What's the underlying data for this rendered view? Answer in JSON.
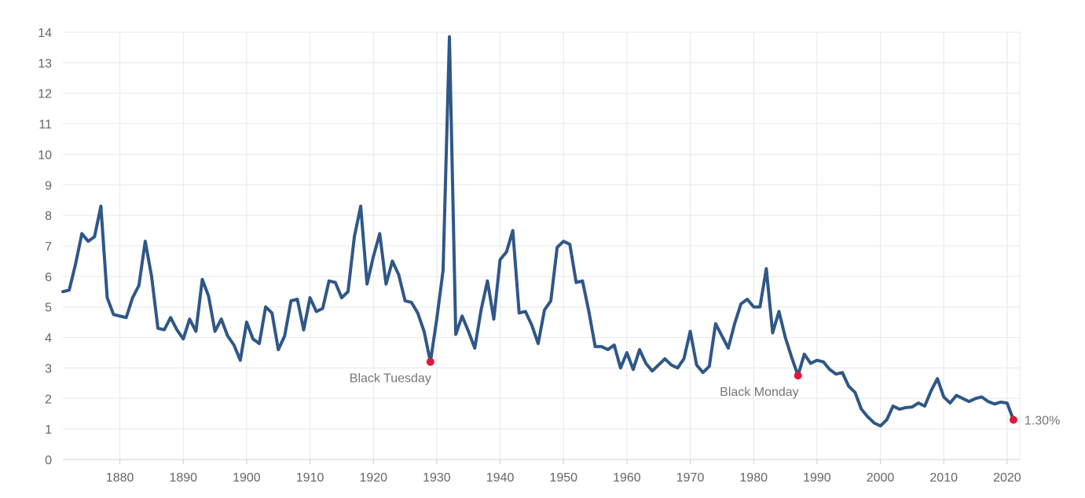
{
  "chart_data": {
    "type": "line",
    "title": "",
    "xlabel": "",
    "ylabel": "",
    "xlim": [
      1871,
      2022
    ],
    "ylim": [
      0,
      14
    ],
    "grid": true,
    "legend": "none",
    "x_ticks": [
      1880,
      1890,
      1900,
      1910,
      1920,
      1930,
      1940,
      1950,
      1960,
      1970,
      1980,
      1990,
      2000,
      2010,
      2020
    ],
    "y_ticks": [
      0,
      1,
      2,
      3,
      4,
      5,
      6,
      7,
      8,
      9,
      10,
      11,
      12,
      13,
      14
    ],
    "series": [
      {
        "color": "#2f5788",
        "points": [
          [
            1871,
            5.5
          ],
          [
            1872,
            5.55
          ],
          [
            1873,
            6.4
          ],
          [
            1874,
            7.4
          ],
          [
            1875,
            7.15
          ],
          [
            1876,
            7.3
          ],
          [
            1877,
            8.3
          ],
          [
            1878,
            5.3
          ],
          [
            1879,
            4.75
          ],
          [
            1880,
            4.7
          ],
          [
            1881,
            4.65
          ],
          [
            1882,
            5.3
          ],
          [
            1883,
            5.7
          ],
          [
            1884,
            7.15
          ],
          [
            1885,
            6.0
          ],
          [
            1886,
            4.3
          ],
          [
            1887,
            4.25
          ],
          [
            1888,
            4.65
          ],
          [
            1889,
            4.25
          ],
          [
            1890,
            3.95
          ],
          [
            1891,
            4.6
          ],
          [
            1892,
            4.2
          ],
          [
            1893,
            5.9
          ],
          [
            1894,
            5.35
          ],
          [
            1895,
            4.2
          ],
          [
            1896,
            4.6
          ],
          [
            1897,
            4.05
          ],
          [
            1898,
            3.75
          ],
          [
            1899,
            3.25
          ],
          [
            1900,
            4.5
          ],
          [
            1901,
            3.95
          ],
          [
            1902,
            3.8
          ],
          [
            1903,
            5.0
          ],
          [
            1904,
            4.8
          ],
          [
            1905,
            3.6
          ],
          [
            1906,
            4.05
          ],
          [
            1907,
            5.2
          ],
          [
            1908,
            5.25
          ],
          [
            1909,
            4.25
          ],
          [
            1910,
            5.3
          ],
          [
            1911,
            4.85
          ],
          [
            1912,
            4.95
          ],
          [
            1913,
            5.85
          ],
          [
            1914,
            5.8
          ],
          [
            1915,
            5.3
          ],
          [
            1916,
            5.5
          ],
          [
            1917,
            7.3
          ],
          [
            1918,
            8.3
          ],
          [
            1919,
            5.75
          ],
          [
            1920,
            6.65
          ],
          [
            1921,
            7.4
          ],
          [
            1922,
            5.75
          ],
          [
            1923,
            6.5
          ],
          [
            1924,
            6.05
          ],
          [
            1925,
            5.2
          ],
          [
            1926,
            5.15
          ],
          [
            1927,
            4.8
          ],
          [
            1928,
            4.2
          ],
          [
            1929,
            3.2
          ],
          [
            1930,
            4.6
          ],
          [
            1931,
            6.2
          ],
          [
            1932,
            13.85
          ],
          [
            1933,
            4.1
          ],
          [
            1934,
            4.7
          ],
          [
            1935,
            4.2
          ],
          [
            1936,
            3.65
          ],
          [
            1937,
            4.9
          ],
          [
            1938,
            5.85
          ],
          [
            1939,
            4.6
          ],
          [
            1940,
            6.55
          ],
          [
            1941,
            6.8
          ],
          [
            1942,
            7.5
          ],
          [
            1943,
            4.8
          ],
          [
            1944,
            4.85
          ],
          [
            1945,
            4.4
          ],
          [
            1946,
            3.8
          ],
          [
            1947,
            4.9
          ],
          [
            1948,
            5.2
          ],
          [
            1949,
            6.95
          ],
          [
            1950,
            7.15
          ],
          [
            1951,
            7.05
          ],
          [
            1952,
            5.8
          ],
          [
            1953,
            5.85
          ],
          [
            1954,
            4.85
          ],
          [
            1955,
            3.7
          ],
          [
            1956,
            3.7
          ],
          [
            1957,
            3.6
          ],
          [
            1958,
            3.75
          ],
          [
            1959,
            3.0
          ],
          [
            1960,
            3.5
          ],
          [
            1961,
            2.95
          ],
          [
            1962,
            3.6
          ],
          [
            1963,
            3.15
          ],
          [
            1964,
            2.9
          ],
          [
            1965,
            3.1
          ],
          [
            1966,
            3.3
          ],
          [
            1967,
            3.1
          ],
          [
            1968,
            3.0
          ],
          [
            1969,
            3.3
          ],
          [
            1970,
            4.2
          ],
          [
            1971,
            3.1
          ],
          [
            1972,
            2.85
          ],
          [
            1973,
            3.05
          ],
          [
            1974,
            4.45
          ],
          [
            1975,
            4.05
          ],
          [
            1976,
            3.65
          ],
          [
            1977,
            4.45
          ],
          [
            1978,
            5.1
          ],
          [
            1979,
            5.25
          ],
          [
            1980,
            5.0
          ],
          [
            1981,
            5.0
          ],
          [
            1982,
            6.25
          ],
          [
            1983,
            4.15
          ],
          [
            1984,
            4.85
          ],
          [
            1985,
            4.0
          ],
          [
            1986,
            3.35
          ],
          [
            1987,
            2.75
          ],
          [
            1988,
            3.45
          ],
          [
            1989,
            3.15
          ],
          [
            1990,
            3.25
          ],
          [
            1991,
            3.2
          ],
          [
            1992,
            2.95
          ],
          [
            1993,
            2.8
          ],
          [
            1994,
            2.85
          ],
          [
            1995,
            2.4
          ],
          [
            1996,
            2.2
          ],
          [
            1997,
            1.65
          ],
          [
            1998,
            1.4
          ],
          [
            1999,
            1.2
          ],
          [
            2000,
            1.1
          ],
          [
            2001,
            1.3
          ],
          [
            2002,
            1.75
          ],
          [
            2003,
            1.65
          ],
          [
            2004,
            1.7
          ],
          [
            2005,
            1.72
          ],
          [
            2006,
            1.85
          ],
          [
            2007,
            1.75
          ],
          [
            2008,
            2.25
          ],
          [
            2009,
            2.65
          ],
          [
            2010,
            2.05
          ],
          [
            2011,
            1.85
          ],
          [
            2012,
            2.1
          ],
          [
            2013,
            2.0
          ],
          [
            2014,
            1.9
          ],
          [
            2015,
            2.0
          ],
          [
            2016,
            2.05
          ],
          [
            2017,
            1.9
          ],
          [
            2018,
            1.82
          ],
          [
            2019,
            1.88
          ],
          [
            2020,
            1.85
          ],
          [
            2021,
            1.3
          ]
        ]
      }
    ],
    "annotations": [
      {
        "label": "Black Tuesday",
        "x": 1929,
        "y": 3.2,
        "color": "#e0173a",
        "label_side": "below-left"
      },
      {
        "label": "Black Monday",
        "x": 1987,
        "y": 2.75,
        "color": "#e0173a",
        "label_side": "below-left"
      },
      {
        "label": "1.30%",
        "x": 2021,
        "y": 1.3,
        "color": "#e0173a",
        "label_side": "right"
      }
    ]
  }
}
